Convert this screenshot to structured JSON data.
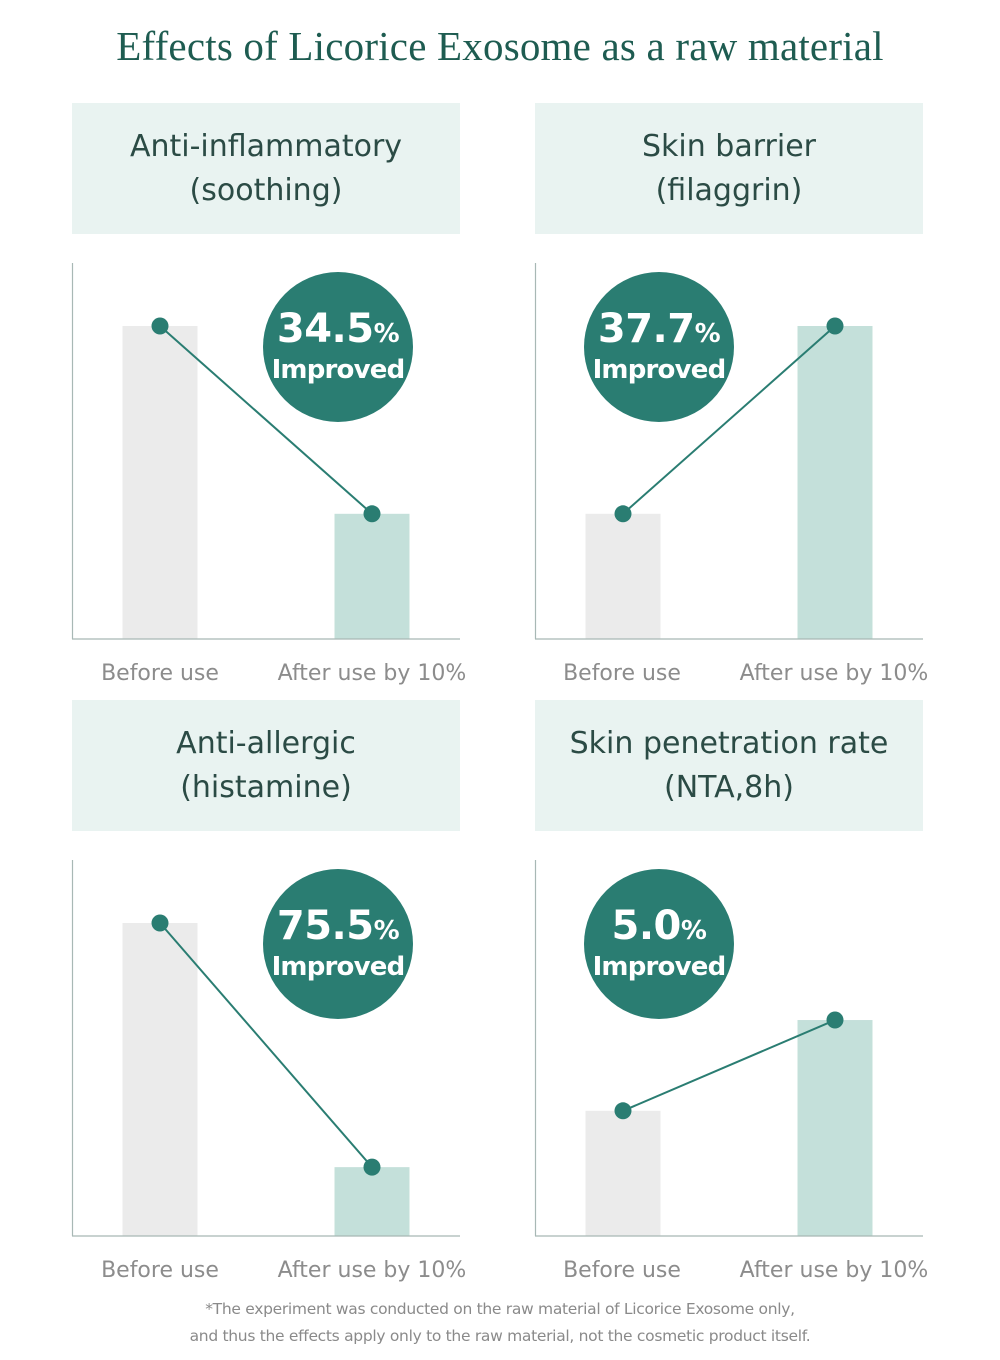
{
  "title": "Effects of Licorice Exosome as a raw material",
  "footnote": {
    "line1": "*The experiment was conducted on the raw material of Licorice Exosome only,",
    "line2": "and thus the effects apply only to the raw material, not the cosmetic product itself."
  },
  "colors": {
    "accent": "#2a7d72",
    "header_bg": "#e9f3f1",
    "before_bar": "#ebebeb",
    "after_bar": "#c4e0da",
    "axis": "#a8b8b5"
  },
  "chart_data": [
    {
      "type": "bar",
      "title_line1": "Anti-inflammatory",
      "title_line2": "(soothing)",
      "categories": [
        "Before use",
        "After use by 10%"
      ],
      "values": [
        100,
        40
      ],
      "improvement_value": "34.5",
      "improvement_unit": "%",
      "improvement_label": "Improved",
      "badge_side": "right",
      "ylim": [
        0,
        100
      ]
    },
    {
      "type": "bar",
      "title_line1": "Skin barrier",
      "title_line2": "(filaggrin)",
      "categories": [
        "Before use",
        "After use by 10%"
      ],
      "values": [
        40,
        100
      ],
      "improvement_value": "37.7",
      "improvement_unit": "%",
      "improvement_label": "Improved",
      "badge_side": "left",
      "ylim": [
        0,
        100
      ]
    },
    {
      "type": "bar",
      "title_line1": "Anti-allergic",
      "title_line2": "(histamine)",
      "categories": [
        "Before use",
        "After use by 10%"
      ],
      "values": [
        100,
        22
      ],
      "improvement_value": "75.5",
      "improvement_unit": "%",
      "improvement_label": "Improved",
      "badge_side": "right",
      "ylim": [
        0,
        100
      ]
    },
    {
      "type": "bar",
      "title_line1": "Skin penetration rate",
      "title_line2": "(NTA,8h)",
      "categories": [
        "Before use",
        "After use by 10%"
      ],
      "values": [
        40,
        69
      ],
      "improvement_value": "5.0",
      "improvement_unit": "%",
      "improvement_label": "Improved",
      "badge_side": "left",
      "ylim": [
        0,
        100
      ]
    }
  ]
}
